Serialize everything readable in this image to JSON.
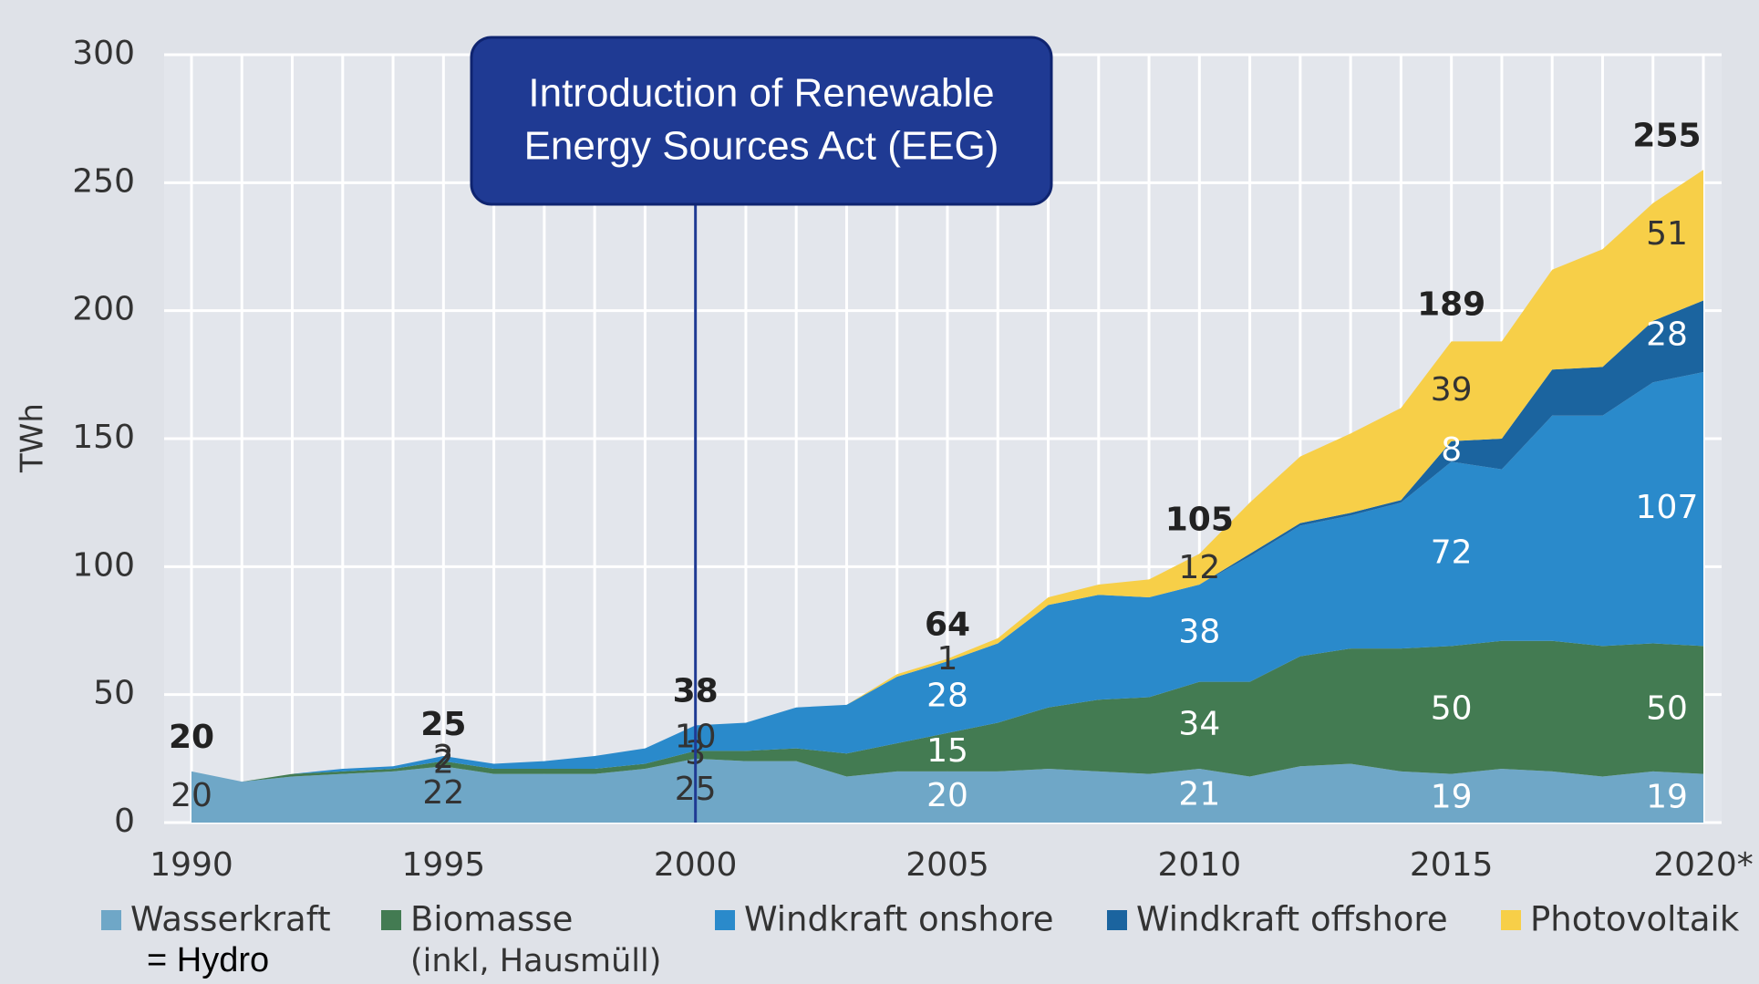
{
  "chart_data": {
    "type": "stacked-area",
    "y_label": "TWh",
    "x": [
      1990,
      1991,
      1992,
      1993,
      1994,
      1995,
      1996,
      1997,
      1998,
      1999,
      2000,
      2001,
      2002,
      2003,
      2004,
      2005,
      2006,
      2007,
      2008,
      2009,
      2010,
      2011,
      2012,
      2013,
      2014,
      2015,
      2016,
      2017,
      2018,
      2019,
      2020
    ],
    "series": [
      {
        "name": "Wasserkraft",
        "note": "= Hydro",
        "color": "#6fa7c7",
        "values": [
          20,
          16,
          18,
          19,
          20,
          22,
          19,
          19,
          19,
          21,
          25,
          24,
          24,
          18,
          20,
          20,
          20,
          21,
          20,
          19,
          21,
          18,
          22,
          23,
          20,
          19,
          21,
          20,
          18,
          20,
          19
        ]
      },
      {
        "name": "Biomasse",
        "note": "(inkl, Hausmüll)",
        "color": "#437b52",
        "values": [
          0,
          0,
          1,
          1,
          1,
          2,
          2,
          2,
          2,
          2,
          3,
          4,
          5,
          9,
          11,
          15,
          19,
          24,
          28,
          30,
          34,
          37,
          43,
          45,
          48,
          50,
          50,
          51,
          51,
          50,
          50
        ]
      },
      {
        "name": "Windkraft onshore",
        "color": "#2a8acb",
        "values": [
          0,
          0,
          0,
          1,
          1,
          2,
          2,
          3,
          5,
          6,
          10,
          11,
          16,
          19,
          26,
          28,
          31,
          40,
          41,
          39,
          38,
          49,
          51,
          52,
          57,
          72,
          67,
          88,
          90,
          102,
          107
        ]
      },
      {
        "name": "Windkraft offshore",
        "color": "#1b649f",
        "values": [
          0,
          0,
          0,
          0,
          0,
          0,
          0,
          0,
          0,
          0,
          0,
          0,
          0,
          0,
          0,
          0,
          0,
          0,
          0,
          0,
          0,
          1,
          1,
          1,
          1,
          8,
          12,
          18,
          19,
          24,
          28
        ]
      },
      {
        "name": "Photovoltaik",
        "color": "#f7cf48",
        "values": [
          0,
          0,
          0,
          0,
          0,
          0,
          0,
          0,
          0,
          0,
          0,
          0,
          0,
          0,
          1,
          1,
          2,
          3,
          4,
          7,
          12,
          20,
          26,
          31,
          36,
          39,
          38,
          39,
          46,
          46,
          51
        ]
      }
    ],
    "totals": {
      "x": [
        1990,
        1995,
        2000,
        2005,
        2010,
        2015,
        2020
      ],
      "values": [
        20,
        25,
        38,
        64,
        105,
        189,
        255
      ]
    },
    "xlim": [
      1990,
      2020
    ],
    "xticks": [
      1990,
      1995,
      2000,
      2005,
      2010,
      2015,
      {
        "value": 2020,
        "label": "2020*"
      }
    ],
    "ylim": [
      0,
      300
    ],
    "yticks": [
      0,
      50,
      100,
      150,
      200,
      250,
      300
    ],
    "grid": true,
    "annotation": {
      "x": 2000,
      "lines": [
        "Introduction of Renewable",
        "Energy Sources Act (EEG)"
      ]
    }
  }
}
